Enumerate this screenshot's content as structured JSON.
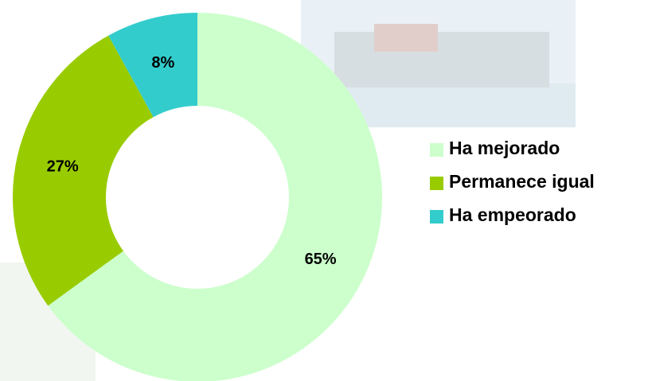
{
  "chart_data": {
    "type": "donut",
    "categories": [
      "Ha mejorado",
      "Permanece igual",
      "Ha empeorado"
    ],
    "values": [
      65,
      27,
      8
    ],
    "value_labels": [
      "65%",
      "27%",
      "8%"
    ],
    "colors": [
      "#ccffcc",
      "#99cc00",
      "#33cccc"
    ],
    "legend": "right"
  }
}
